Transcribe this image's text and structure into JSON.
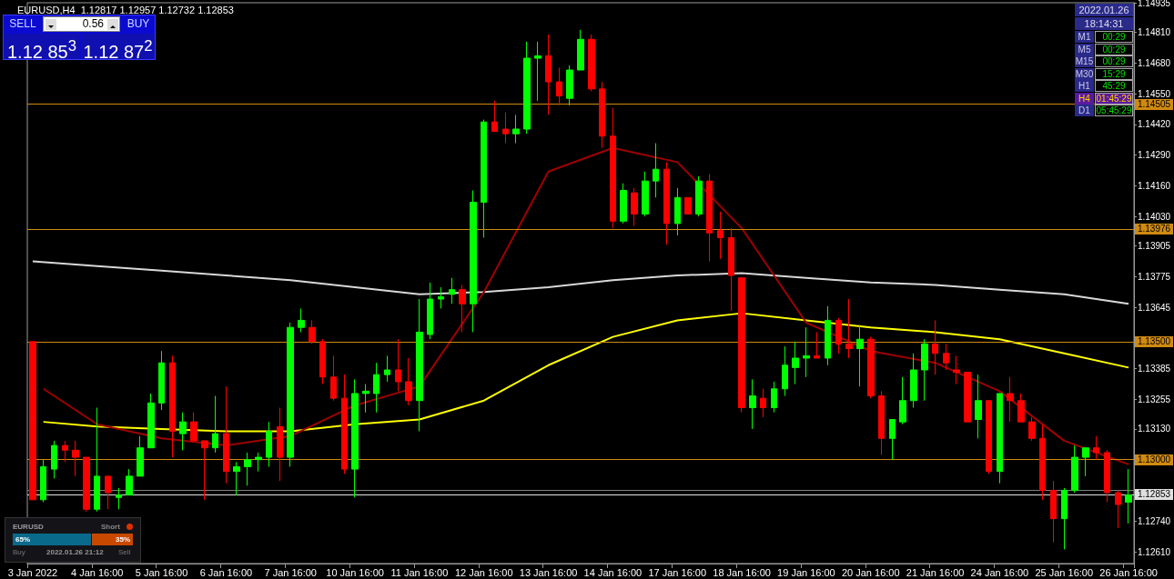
{
  "chart_data": {
    "type": "candlestick",
    "title": "EURUSD,H4  1.12817 1.12957 1.12732 1.12853",
    "categories": [
      "3 Jan 2022",
      null,
      null,
      null,
      null,
      null,
      "4 Jan 16:00",
      null,
      null,
      null,
      null,
      null,
      "5 Jan 16:00",
      null,
      null,
      null,
      null,
      null,
      "6 Jan 16:00",
      null,
      null,
      null,
      null,
      null,
      "7 Jan 16:00",
      null,
      null,
      null,
      null,
      null,
      "10 Jan 16:00",
      null,
      null,
      null,
      null,
      null,
      "11 Jan 16:00",
      null,
      null,
      null,
      null,
      null,
      "12 Jan 16:00",
      null,
      null,
      null,
      null,
      null,
      "13 Jan 16:00",
      null,
      null,
      null,
      null,
      null,
      "14 Jan 16:00",
      null,
      null,
      null,
      null,
      null,
      "17 Jan 16:00",
      null,
      null,
      null,
      null,
      null,
      "18 Jan 16:00",
      null,
      null,
      null,
      null,
      null,
      "19 Jan 16:00",
      null,
      null,
      null,
      null,
      null,
      "20 Jan 16:00",
      null,
      null,
      null,
      null,
      null,
      "21 Jan 16:00",
      null,
      null,
      null,
      null,
      null,
      "24 Jan 16:00",
      null,
      null,
      null,
      null,
      null,
      "25 Jan 16:00",
      null,
      null,
      null,
      null,
      null,
      "26 Jan 16:00"
    ],
    "ohlc": [
      [
        1.135,
        1.135,
        1.1283,
        1.1283
      ],
      [
        1.1283,
        1.13,
        1.1282,
        1.1297
      ],
      [
        1.1296,
        1.1308,
        1.1292,
        1.1306
      ],
      [
        1.1306,
        1.1308,
        1.1299,
        1.1304
      ],
      [
        1.1304,
        1.1308,
        1.1293,
        1.1301
      ],
      [
        1.1301,
        1.1301,
        1.1278,
        1.1279
      ],
      [
        1.1279,
        1.1322,
        1.1278,
        1.1293
      ],
      [
        1.1293,
        1.1293,
        1.1279,
        1.1286
      ],
      [
        1.1284,
        1.1288,
        1.1279,
        1.1285
      ],
      [
        1.1285,
        1.1296,
        1.1285,
        1.1293
      ],
      [
        1.1293,
        1.131,
        1.1293,
        1.1305
      ],
      [
        1.1305,
        1.1328,
        1.1305,
        1.1324
      ],
      [
        1.1324,
        1.1346,
        1.1321,
        1.1341
      ],
      [
        1.1341,
        1.1344,
        1.1301,
        1.1312
      ],
      [
        1.1311,
        1.132,
        1.1304,
        1.1316
      ],
      [
        1.1316,
        1.132,
        1.1308,
        1.1308
      ],
      [
        1.1308,
        1.1308,
        1.1283,
        1.1305
      ],
      [
        1.1305,
        1.1327,
        1.1303,
        1.1311
      ],
      [
        1.1311,
        1.1331,
        1.129,
        1.1295
      ],
      [
        1.1295,
        1.1299,
        1.1285,
        1.1297
      ],
      [
        1.1297,
        1.1303,
        1.1289,
        1.13
      ],
      [
        1.13,
        1.1303,
        1.1295,
        1.1301
      ],
      [
        1.1301,
        1.1316,
        1.1297,
        1.1312
      ],
      [
        1.1314,
        1.1322,
        1.1291,
        1.1301
      ],
      [
        1.1301,
        1.1358,
        1.1297,
        1.1356
      ],
      [
        1.1356,
        1.1364,
        1.1354,
        1.1359
      ],
      [
        1.1356,
        1.1359,
        1.1349,
        1.135
      ],
      [
        1.135,
        1.1351,
        1.1332,
        1.1335
      ],
      [
        1.1335,
        1.1344,
        1.1325,
        1.1326
      ],
      [
        1.1326,
        1.1336,
        1.1294,
        1.1296
      ],
      [
        1.1296,
        1.1334,
        1.1284,
        1.1328
      ],
      [
        1.1328,
        1.1332,
        1.132,
        1.1329
      ],
      [
        1.1328,
        1.1341,
        1.132,
        1.1336
      ],
      [
        1.1336,
        1.1344,
        1.1333,
        1.1338
      ],
      [
        1.1338,
        1.1351,
        1.1329,
        1.1333
      ],
      [
        1.1333,
        1.1343,
        1.1323,
        1.1325
      ],
      [
        1.1325,
        1.1368,
        1.1312,
        1.1354
      ],
      [
        1.1353,
        1.1375,
        1.1351,
        1.1368
      ],
      [
        1.1368,
        1.1373,
        1.1364,
        1.1369
      ],
      [
        1.137,
        1.1377,
        1.1366,
        1.1372
      ],
      [
        1.1372,
        1.1374,
        1.1354,
        1.1366
      ],
      [
        1.1366,
        1.1414,
        1.1354,
        1.1409
      ],
      [
        1.1409,
        1.1444,
        1.1394,
        1.1443
      ],
      [
        1.1443,
        1.1452,
        1.1439,
        1.1439
      ],
      [
        1.144,
        1.1447,
        1.1434,
        1.1438
      ],
      [
        1.1438,
        1.1446,
        1.1434,
        1.144
      ],
      [
        1.144,
        1.1477,
        1.1438,
        1.147
      ],
      [
        1.147,
        1.1477,
        1.1452,
        1.1471
      ],
      [
        1.1471,
        1.148,
        1.1446,
        1.146
      ],
      [
        1.146,
        1.1466,
        1.145,
        1.1454
      ],
      [
        1.1453,
        1.1467,
        1.145,
        1.1465
      ],
      [
        1.1465,
        1.1482,
        1.1465,
        1.1478
      ],
      [
        1.1478,
        1.148,
        1.1456,
        1.1457
      ],
      [
        1.1457,
        1.146,
        1.1432,
        1.1437
      ],
      [
        1.1437,
        1.1449,
        1.1398,
        1.1401
      ],
      [
        1.1401,
        1.1417,
        1.14,
        1.1414
      ],
      [
        1.1413,
        1.1415,
        1.1399,
        1.1404
      ],
      [
        1.1404,
        1.1422,
        1.1403,
        1.1418
      ],
      [
        1.1418,
        1.1434,
        1.1411,
        1.1423
      ],
      [
        1.1423,
        1.1426,
        1.1391,
        1.14
      ],
      [
        1.14,
        1.1415,
        1.1395,
        1.1411
      ],
      [
        1.1411,
        1.1411,
        1.1404,
        1.1404
      ],
      [
        1.1404,
        1.142,
        1.1403,
        1.1418
      ],
      [
        1.1418,
        1.1421,
        1.1384,
        1.1396
      ],
      [
        1.1397,
        1.1405,
        1.1385,
        1.1394
      ],
      [
        1.1394,
        1.1398,
        1.1363,
        1.1378
      ],
      [
        1.1377,
        1.1377,
        1.132,
        1.1322
      ],
      [
        1.1322,
        1.1334,
        1.1313,
        1.1327
      ],
      [
        1.1326,
        1.133,
        1.1318,
        1.1322
      ],
      [
        1.1322,
        1.1333,
        1.132,
        1.133
      ],
      [
        1.133,
        1.1348,
        1.1327,
        1.134
      ],
      [
        1.1339,
        1.135,
        1.1332,
        1.1343
      ],
      [
        1.1343,
        1.1356,
        1.1335,
        1.1344
      ],
      [
        1.1344,
        1.1354,
        1.1343,
        1.1343
      ],
      [
        1.1343,
        1.1365,
        1.134,
        1.1359
      ],
      [
        1.1359,
        1.136,
        1.1345,
        1.1349
      ],
      [
        1.1349,
        1.1368,
        1.1343,
        1.1347
      ],
      [
        1.1347,
        1.1357,
        1.1331,
        1.1351
      ],
      [
        1.1351,
        1.1352,
        1.1326,
        1.1327
      ],
      [
        1.1327,
        1.1329,
        1.1302,
        1.1309
      ],
      [
        1.1309,
        1.1317,
        1.13,
        1.1317
      ],
      [
        1.1316,
        1.1335,
        1.1315,
        1.1325
      ],
      [
        1.1325,
        1.1345,
        1.1322,
        1.1338
      ],
      [
        1.1338,
        1.1351,
        1.1325,
        1.1349
      ],
      [
        1.1349,
        1.1359,
        1.1336,
        1.1345
      ],
      [
        1.1345,
        1.1349,
        1.1338,
        1.1341
      ],
      [
        1.1338,
        1.1344,
        1.1332,
        1.1337
      ],
      [
        1.1337,
        1.1337,
        1.1316,
        1.1316
      ],
      [
        1.1317,
        1.1336,
        1.1309,
        1.1325
      ],
      [
        1.1325,
        1.1325,
        1.1294,
        1.1295
      ],
      [
        1.1295,
        1.1328,
        1.129,
        1.1328
      ],
      [
        1.1328,
        1.1335,
        1.1316,
        1.1325
      ],
      [
        1.1325,
        1.1328,
        1.1316,
        1.1316
      ],
      [
        1.1316,
        1.1318,
        1.1308,
        1.1309
      ],
      [
        1.1309,
        1.1315,
        1.1283,
        1.1287
      ],
      [
        1.1287,
        1.1291,
        1.1265,
        1.1275
      ],
      [
        1.1275,
        1.1288,
        1.1262,
        1.1287
      ],
      [
        1.1287,
        1.1306,
        1.1286,
        1.1301
      ],
      [
        1.1301,
        1.1305,
        1.1293,
        1.1305
      ],
      [
        1.1305,
        1.131,
        1.13,
        1.1303
      ],
      [
        1.1303,
        1.1304,
        1.1282,
        1.1286
      ],
      [
        1.1286,
        1.1287,
        1.1271,
        1.1281
      ],
      [
        1.1282,
        1.1296,
        1.1273,
        1.1285
      ]
    ],
    "colors": [
      "#ff0000",
      "#00ff00",
      "#00ff00",
      "#ff0000",
      "#ff0000",
      "#ff0000",
      "#00ff00",
      "#ff0000",
      "#00ff00",
      "#00ff00",
      "#00ff00",
      "#00ff00",
      "#00ff00",
      "#ff0000",
      "#00ff00",
      "#ff0000",
      "#ff0000",
      "#00ff00",
      "#ff0000",
      "#00ff00",
      "#00ff00",
      "#00ff00",
      "#00ff00",
      "#ff0000",
      "#00ff00",
      "#00ff00",
      "#ff0000",
      "#ff0000",
      "#ff0000",
      "#ff0000",
      "#00ff00",
      "#00ff00",
      "#00ff00",
      "#00ff00",
      "#ff0000",
      "#ff0000",
      "#00ff00",
      "#00ff00",
      "#00ff00",
      "#00ff00",
      "#ff0000",
      "#00ff00",
      "#00ff00",
      "#ff0000",
      "#ff0000",
      "#00ff00",
      "#00ff00",
      "#00ff00",
      "#ff0000",
      "#ff0000",
      "#00ff00",
      "#00ff00",
      "#ff0000",
      "#ff0000",
      "#ff0000",
      "#00ff00",
      "#ff0000",
      "#00ff00",
      "#00ff00",
      "#ff0000",
      "#00ff00",
      "#ff0000",
      "#00ff00",
      "#ff0000",
      "#ff0000",
      "#ff0000",
      "#ff0000",
      "#00ff00",
      "#ff0000",
      "#00ff00",
      "#00ff00",
      "#00ff00",
      "#00ff00",
      "#ff0000",
      "#00ff00",
      "#ff0000",
      "#ff0000",
      "#00ff00",
      "#ff0000",
      "#ff0000",
      "#00ff00",
      "#00ff00",
      "#00ff00",
      "#00ff00",
      "#ff0000",
      "#ff0000",
      "#ff0000",
      "#ff0000",
      "#00ff00",
      "#ff0000",
      "#00ff00",
      "#ff0000",
      "#ff0000",
      "#ff0000",
      "#ff0000",
      "#ff0000",
      "#00ff00",
      "#00ff00",
      "#00ff00",
      "#ff0000",
      "#ff0000",
      "#ff0000",
      "#00ff00"
    ],
    "series": [
      {
        "type": "line",
        "color": "#d8d8d8",
        "values": [
          1.1384,
          null,
          null,
          null,
          null,
          null,
          1.1382,
          null,
          null,
          null,
          null,
          null,
          1.138,
          null,
          null,
          null,
          null,
          null,
          1.1378,
          null,
          null,
          null,
          null,
          null,
          1.1376,
          null,
          null,
          null,
          null,
          null,
          1.1373,
          null,
          null,
          null,
          null,
          null,
          1.137,
          null,
          null,
          null,
          null,
          null,
          1.1371,
          null,
          null,
          null,
          null,
          null,
          1.1373,
          null,
          null,
          null,
          null,
          null,
          1.1376,
          null,
          null,
          null,
          null,
          null,
          1.1378,
          null,
          null,
          null,
          null,
          null,
          1.1379,
          null,
          null,
          null,
          null,
          null,
          1.1377,
          null,
          null,
          null,
          null,
          null,
          1.1375,
          null,
          null,
          null,
          null,
          null,
          1.1374,
          null,
          null,
          null,
          null,
          null,
          1.1372,
          null,
          null,
          null,
          null,
          null,
          1.137,
          null,
          null,
          null,
          null,
          null,
          1.1366
        ]
      },
      {
        "type": "line",
        "color": "#ffff00",
        "values": [
          null,
          1.1316,
          null,
          null,
          null,
          null,
          1.1314,
          null,
          null,
          null,
          null,
          null,
          1.1313,
          null,
          null,
          null,
          null,
          null,
          1.1312,
          null,
          null,
          null,
          null,
          null,
          1.1312,
          null,
          null,
          null,
          null,
          null,
          1.1315,
          null,
          null,
          null,
          null,
          null,
          1.1317,
          null,
          null,
          null,
          null,
          null,
          1.1325,
          null,
          null,
          null,
          null,
          null,
          1.134,
          null,
          null,
          null,
          null,
          null,
          1.1352,
          null,
          null,
          null,
          null,
          null,
          1.1359,
          null,
          null,
          null,
          null,
          null,
          1.1362,
          null,
          null,
          null,
          null,
          null,
          1.1359,
          null,
          null,
          null,
          null,
          null,
          1.1356,
          null,
          null,
          null,
          null,
          null,
          1.1354,
          null,
          null,
          null,
          null,
          null,
          1.1351,
          null,
          null,
          null,
          null,
          null,
          1.1345,
          null,
          null,
          null,
          null,
          null,
          1.1339
        ]
      },
      {
        "type": "line",
        "color": "#a00000",
        "values": [
          null,
          1.133,
          null,
          null,
          null,
          null,
          1.1315,
          null,
          null,
          null,
          null,
          null,
          1.1309,
          null,
          null,
          null,
          null,
          null,
          1.1306,
          null,
          null,
          null,
          null,
          null,
          1.131,
          null,
          null,
          null,
          null,
          null,
          1.1323,
          null,
          null,
          null,
          null,
          null,
          1.1331,
          null,
          null,
          null,
          null,
          null,
          1.1371,
          null,
          null,
          null,
          null,
          null,
          1.1422,
          null,
          null,
          null,
          null,
          null,
          1.1432,
          null,
          null,
          null,
          null,
          null,
          1.1426,
          null,
          null,
          null,
          null,
          null,
          1.1398,
          null,
          null,
          null,
          null,
          null,
          1.1358,
          null,
          null,
          null,
          null,
          null,
          1.1346,
          null,
          null,
          null,
          null,
          null,
          1.1341,
          null,
          null,
          null,
          null,
          null,
          1.1329,
          null,
          null,
          null,
          null,
          null,
          1.1308,
          null,
          null,
          null,
          null,
          null,
          1.1298
        ]
      }
    ],
    "ylim": [
      1.1256,
      1.14935
    ],
    "yticks": [
      {
        "value": 1.1261,
        "label": "1.12610"
      },
      {
        "value": 1.1274,
        "label": "1.12740"
      },
      {
        "value": 1.1313,
        "label": "1.13130"
      },
      {
        "value": 1.13255,
        "label": "1.13255"
      },
      {
        "value": 1.13385,
        "label": "1.13385"
      },
      {
        "value": 1.13645,
        "label": "1.13645"
      },
      {
        "value": 1.13775,
        "label": "1.13775"
      },
      {
        "value": 1.13905,
        "label": "1.13905"
      },
      {
        "value": 1.1403,
        "label": "1.14030"
      },
      {
        "value": 1.1416,
        "label": "1.14160"
      },
      {
        "value": 1.1429,
        "label": "1.14290"
      },
      {
        "value": 1.1442,
        "label": "1.14420"
      },
      {
        "value": 1.1455,
        "label": "1.14550"
      },
      {
        "value": 1.1468,
        "label": "1.14680"
      },
      {
        "value": 1.1481,
        "label": "1.14810"
      },
      {
        "value": 1.14935,
        "label": "1.14935"
      }
    ],
    "ref_lines": [
      {
        "axis": "y",
        "value": 1.14505,
        "label": "1.14505",
        "color": "#d08a10"
      },
      {
        "axis": "y",
        "value": 1.13976,
        "label": "1.13976",
        "color": "#d08a10"
      },
      {
        "axis": "y",
        "value": 1.135,
        "label": "1.13500",
        "color": "#d08a10"
      },
      {
        "axis": "y",
        "value": 1.13,
        "label": "1.13000",
        "color": "#d08a10"
      },
      {
        "axis": "y",
        "value": 1.12872,
        "color": "#808080"
      },
      {
        "axis": "y",
        "value": 1.12853,
        "label": "1.12853",
        "color": "#e0e0e0"
      }
    ],
    "annotations": [
      "SELL",
      "0.56",
      "BUY",
      "1.12 85$^{3}$",
      "1.12 87$^{2}$",
      "2022.01.26",
      "18:14:31",
      "M1",
      "00:29",
      "M5",
      "00:29",
      "M15",
      "00:29",
      "M30",
      "15:29",
      "H1",
      "45:29",
      "H4",
      "01:45:29",
      "D1",
      "05:45:29",
      "EURUSD",
      "Short",
      "65%",
      "35%",
      "Buy",
      "2022.01.26 21:12",
      "Sell"
    ]
  }
}
